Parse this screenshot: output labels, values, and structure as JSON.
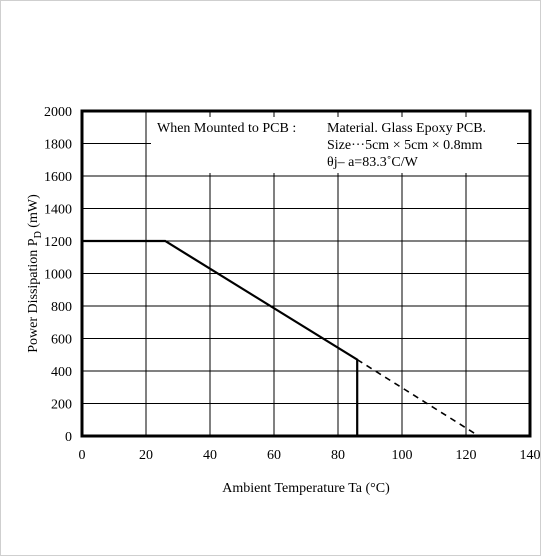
{
  "chart_data": {
    "type": "line",
    "title": "",
    "xlabel": "Ambient Temperature  Ta (°C)",
    "ylabel_main": "Power Dissipation  P",
    "ylabel_sub": "D",
    "ylabel_unit": " (mW)",
    "xlim": [
      0,
      140
    ],
    "ylim": [
      0,
      2000
    ],
    "xticks": [
      0,
      20,
      40,
      60,
      80,
      100,
      120,
      140
    ],
    "yticks": [
      0,
      200,
      400,
      600,
      800,
      1000,
      1200,
      1400,
      1600,
      1800,
      2000
    ],
    "grid": true,
    "series": [
      {
        "style": "solid",
        "x": [
          0,
          26,
          86,
          86
        ],
        "y": [
          1200,
          1200,
          470,
          0
        ]
      },
      {
        "style": "dashed",
        "x": [
          86,
          124
        ],
        "y": [
          470,
          0
        ]
      }
    ],
    "annotations": [
      "When Mounted to PCB :",
      "Material. Glass Epoxy PCB.",
      "Size···5cm × 5cm × 0.8mm",
      "θj– a=83.3˚C/W"
    ]
  }
}
